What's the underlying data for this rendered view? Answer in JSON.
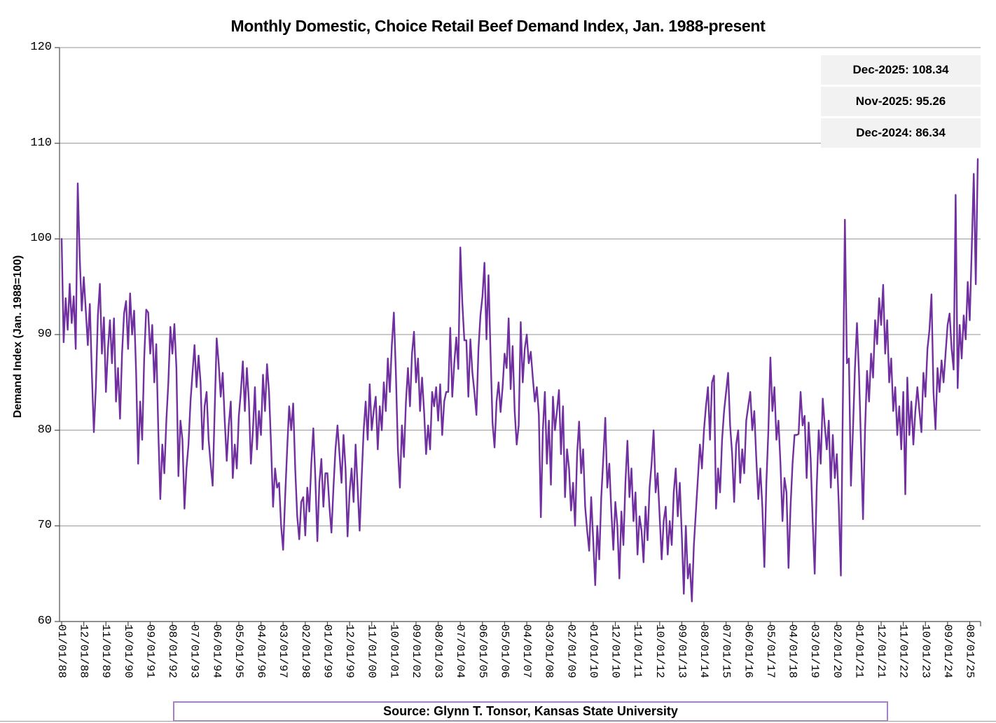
{
  "title": "Monthly Domestic, Choice Retail Beef Demand Index, Jan. 1988-present",
  "y_axis_title": "Demand Index (Jan. 1988=100)",
  "annotation": {
    "lines": [
      "Dec-2025: 108.34",
      "Nov-2025: 95.26",
      "Dec-2024: 86.34"
    ]
  },
  "source_label": "Source: Glynn T. Tonsor, Kansas State University",
  "colors": {
    "line": "#7030A0",
    "grid": "#969696",
    "axis": "#4d4d4d",
    "annotation_bg": "#f2f2f2",
    "source_border": "#a97fc9"
  },
  "chart_data": {
    "type": "line",
    "title": "Monthly Domestic, Choice Retail Beef Demand Index, Jan. 1988-present",
    "xlabel": "",
    "ylabel": "Demand Index (Jan. 1988=100)",
    "ylim": [
      60,
      120
    ],
    "y_ticks": [
      60,
      70,
      80,
      90,
      100,
      110,
      120
    ],
    "grid": "horizontal",
    "legend_position": "none",
    "frequency": "monthly",
    "start_month": "Jan-1988",
    "end_month": "Dec-2025",
    "x_tick_interval_months": 11,
    "x_tick_labels": [
      "01/01/88",
      "12/01/88",
      "11/01/89",
      "10/01/90",
      "09/01/91",
      "08/01/92",
      "07/01/93",
      "06/01/94",
      "05/01/95",
      "04/01/96",
      "03/01/97",
      "02/01/98",
      "01/01/99",
      "12/01/99",
      "11/01/00",
      "10/01/01",
      "09/01/02",
      "08/01/03",
      "07/01/04",
      "06/01/05",
      "05/01/06",
      "04/01/07",
      "03/01/08",
      "02/01/09",
      "01/01/10",
      "12/01/10",
      "11/01/11",
      "10/01/12",
      "09/01/13",
      "08/01/14",
      "07/01/15",
      "06/01/16",
      "05/01/17",
      "04/01/18",
      "03/01/19",
      "02/01/20",
      "01/01/21",
      "12/01/21",
      "11/01/22",
      "10/01/23",
      "09/01/24",
      "08/01/25"
    ],
    "series_name": "Choice Retail Beef Demand Index",
    "values": [
      100.0,
      89.2,
      93.8,
      90.5,
      95.3,
      91.2,
      94.0,
      88.5,
      105.8,
      98.0,
      92.5,
      96.0,
      92.5,
      88.9,
      93.2,
      86.0,
      79.8,
      84.5,
      92.0,
      95.3,
      88.0,
      91.8,
      84.0,
      88.5,
      91.5,
      87.0,
      91.7,
      83.0,
      86.5,
      81.2,
      88.0,
      92.2,
      93.5,
      88.5,
      94.3,
      90.0,
      92.5,
      86.0,
      76.5,
      83.0,
      79.0,
      87.5,
      92.6,
      92.3,
      88.0,
      91.0,
      85.0,
      89.0,
      80.0,
      72.8,
      78.5,
      75.5,
      81.0,
      85.0,
      90.8,
      88.0,
      91.1,
      86.5,
      75.2,
      81.0,
      79.0,
      71.8,
      76.0,
      78.5,
      83.0,
      86.0,
      88.9,
      84.5,
      87.8,
      85.0,
      78.0,
      82.5,
      84.0,
      79.0,
      76.5,
      74.2,
      82.0,
      89.6,
      87.0,
      83.5,
      86.0,
      81.0,
      76.8,
      80.5,
      83.0,
      75.0,
      78.5,
      76.0,
      81.5,
      84.0,
      87.2,
      82.0,
      86.5,
      83.0,
      76.5,
      80.0,
      84.5,
      78.0,
      82.0,
      79.5,
      85.8,
      82.0,
      86.9,
      84.0,
      78.5,
      72.0,
      76.0,
      74.0,
      74.5,
      70.0,
      67.5,
      73.0,
      78.0,
      82.5,
      80.0,
      82.8,
      76.0,
      71.0,
      68.6,
      72.5,
      73.0,
      69.0,
      74.0,
      71.5,
      76.5,
      80.2,
      75.0,
      68.4,
      74.5,
      77.0,
      72.0,
      75.5,
      75.5,
      72.0,
      69.3,
      74.0,
      78.0,
      80.5,
      77.5,
      74.5,
      79.5,
      76.0,
      68.9,
      73.5,
      76.0,
      72.5,
      78.5,
      74.0,
      69.5,
      75.0,
      80.0,
      83.0,
      79.0,
      84.8,
      80.0,
      82.0,
      83.5,
      78.0,
      82.5,
      80.0,
      85.0,
      82.0,
      87.5,
      84.0,
      88.9,
      92.3,
      86.0,
      78.0,
      74.0,
      80.5,
      77.2,
      83.0,
      86.5,
      82.5,
      88.0,
      90.3,
      85.0,
      87.5,
      82.0,
      85.5,
      82.0,
      77.5,
      80.5,
      78.0,
      84.0,
      82.5,
      84.5,
      81.0,
      84.8,
      79.5,
      83.0,
      84.0,
      84.0,
      90.7,
      83.5,
      87.0,
      89.7,
      86.4,
      99.1,
      93.3,
      89.4,
      89.4,
      83.5,
      89.5,
      86.0,
      84.0,
      81.6,
      88.4,
      92.0,
      94.0,
      97.5,
      89.5,
      96.2,
      88.1,
      80.8,
      78.2,
      83.0,
      85.0,
      81.9,
      84.5,
      88.0,
      86.5,
      91.7,
      84.3,
      88.8,
      82.0,
      78.5,
      80.5,
      91.3,
      85.0,
      88.5,
      90.0,
      87.0,
      88.2,
      85.5,
      83.0,
      84.5,
      81.6,
      70.9,
      80.0,
      84.0,
      76.5,
      81.0,
      74.3,
      83.5,
      80.0,
      82.0,
      84.2,
      77.5,
      82.5,
      73.0,
      78.0,
      76.0,
      71.6,
      74.5,
      70.0,
      77.5,
      80.9,
      75.5,
      78.0,
      72.0,
      69.5,
      67.4,
      73.0,
      68.5,
      63.8,
      70.0,
      66.5,
      73.0,
      77.0,
      81.3,
      74.0,
      76.5,
      71.5,
      67.5,
      72.5,
      70.0,
      64.5,
      71.5,
      68.0,
      74.5,
      78.9,
      73.0,
      76.0,
      70.5,
      73.5,
      67.0,
      71.0,
      69.5,
      66.2,
      72.0,
      68.5,
      74.0,
      76.5,
      80.0,
      73.5,
      75.5,
      71.0,
      66.5,
      70.5,
      72.0,
      67.0,
      70.5,
      68.0,
      73.5,
      76.0,
      71.0,
      74.5,
      69.0,
      62.9,
      70.0,
      64.5,
      66.0,
      62.1,
      68.0,
      71.5,
      75.0,
      78.5,
      76.0,
      80.0,
      82.5,
      84.5,
      79.0,
      85.0,
      85.7,
      71.8,
      76.0,
      73.5,
      79.0,
      82.0,
      84.0,
      86.0,
      80.5,
      77.5,
      72.5,
      78.5,
      80.0,
      74.5,
      78.0,
      75.5,
      81.0,
      82.5,
      84.0,
      80.0,
      82.0,
      77.0,
      72.8,
      76.0,
      72.0,
      65.7,
      74.5,
      80.0,
      87.6,
      82.0,
      84.5,
      79.0,
      81.0,
      76.5,
      70.5,
      75.0,
      73.5,
      65.6,
      72.0,
      76.5,
      79.5,
      79.5,
      79.6,
      84.0,
      80.5,
      81.5,
      75.0,
      80.8,
      77.0,
      70.5,
      65.0,
      74.0,
      80.0,
      76.5,
      83.3,
      80.5,
      78.0,
      81.0,
      74.0,
      79.5,
      75.0,
      77.5,
      72.0,
      64.8,
      83.0,
      102.0,
      87.0,
      87.5,
      74.2,
      80.0,
      86.5,
      91.2,
      86.0,
      78.5,
      70.7,
      80.0,
      86.2,
      83.0,
      88.0,
      85.5,
      91.5,
      89.0,
      93.8,
      91.0,
      95.2,
      88.0,
      91.5,
      85.0,
      87.5,
      82.0,
      84.5,
      79.5,
      82.5,
      78.0,
      84.0,
      73.3,
      85.5,
      79.5,
      83.0,
      78.5,
      82.0,
      84.5,
      82.0,
      79.8,
      86.0,
      83.5,
      88.5,
      90.5,
      94.2,
      84.0,
      80.1,
      86.5,
      84.0,
      87.3,
      85.0,
      88.0,
      91.0,
      92.2,
      88.5,
      86.34,
      104.6,
      84.4,
      91.0,
      87.5,
      92.0,
      89.5,
      95.5,
      91.5,
      99.0,
      106.8,
      95.26,
      108.34
    ],
    "labeled_points": {
      "Dec-2025": 108.34,
      "Nov-2025": 95.26,
      "Dec-2024": 86.34
    }
  }
}
